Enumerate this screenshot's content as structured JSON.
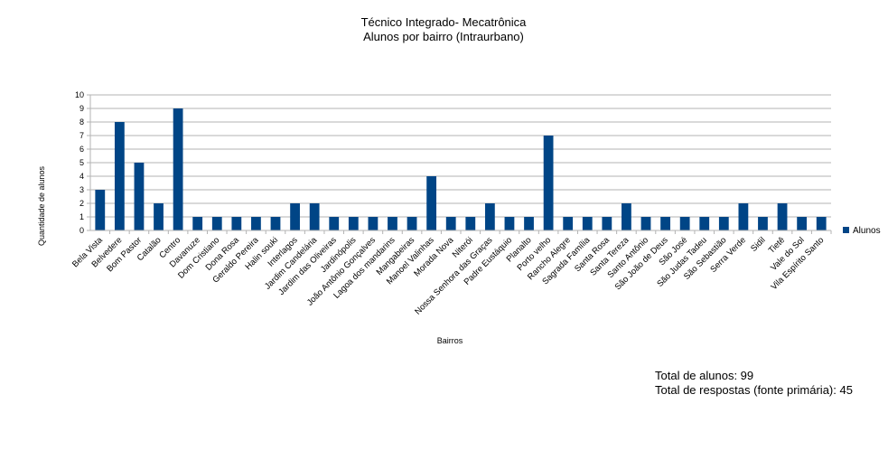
{
  "chart_data": {
    "type": "bar",
    "title": "Técnico Integrado- Mecatrônica",
    "subtitle": "Alunos por bairro (Intraurbano)",
    "xlabel": "Bairros",
    "ylabel": "Quantidade de alunos",
    "ylim": [
      0,
      10
    ],
    "yticks": [
      0,
      1,
      2,
      3,
      4,
      5,
      6,
      7,
      8,
      9,
      10
    ],
    "grid": true,
    "legend_position": "right",
    "color": "#004586",
    "categories": [
      "Bela Vista",
      "Belvedere",
      "Bom Pastor",
      "Catalão",
      "Centro",
      "Davanuze",
      "Dom Cristiano",
      "Dona Rosa",
      "Geraldo Pereira",
      "Halin souki",
      "Interlagos",
      "Jardim Candelária",
      "Jardim das Oliveiras",
      "Jardinópolis",
      "João Antônio Gonçalves",
      "Lagoa dos mandarins",
      "Mangabeiras",
      "Manoel Valinhas",
      "Morada Nova",
      "Niterói",
      "Nossa Senhora das Graças",
      "Padre Eustáquio",
      "Planalto",
      "Porto velho",
      "Rancho Alegre",
      "Sagrada Família",
      "Santa Rosa",
      "Santa Tereza",
      "Santo Antônio",
      "São João de Deus",
      "São José",
      "São Judas Tadeu",
      "São Sebastião",
      "Serra Verde",
      "Sidil",
      "Tietê",
      "Vale do Sol",
      "Vila Espírito Santo"
    ],
    "series": [
      {
        "name": "Alunos",
        "values": [
          3,
          8,
          5,
          2,
          9,
          1,
          1,
          1,
          1,
          1,
          2,
          2,
          1,
          1,
          1,
          1,
          1,
          4,
          1,
          1,
          2,
          1,
          1,
          7,
          1,
          1,
          1,
          2,
          1,
          1,
          1,
          1,
          1,
          2,
          1,
          2,
          1,
          1
        ]
      }
    ]
  },
  "notes": {
    "total_students": "Total de alunos: 99",
    "total_responses": "Total de respostas (fonte primária): 45"
  }
}
